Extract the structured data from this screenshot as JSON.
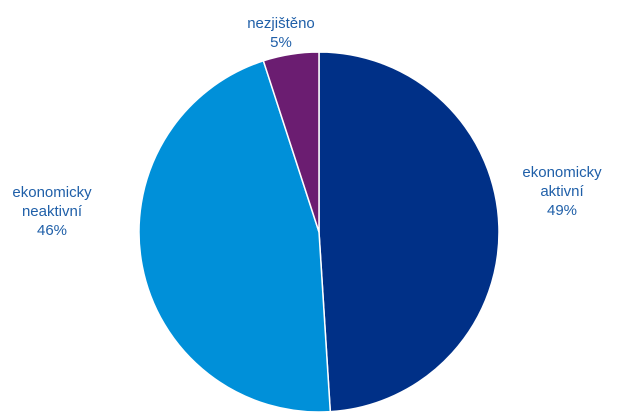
{
  "chart_data": {
    "type": "pie",
    "title": "",
    "slices": [
      {
        "name_lines": [
          "ekonomicky",
          "aktivní"
        ],
        "value": 49,
        "value_label": "49%",
        "color": "#003087"
      },
      {
        "name_lines": [
          "ekonomicky",
          "neaktivní"
        ],
        "value": 46,
        "value_label": "46%",
        "color": "#0090d9"
      },
      {
        "name_lines": [
          "nezjištěno"
        ],
        "value": 5,
        "value_label": "5%",
        "color": "#6b1d71"
      }
    ],
    "start_angle_deg": 0,
    "direction": "clockwise",
    "legend": "none",
    "label_color": "#1f5fa8"
  }
}
